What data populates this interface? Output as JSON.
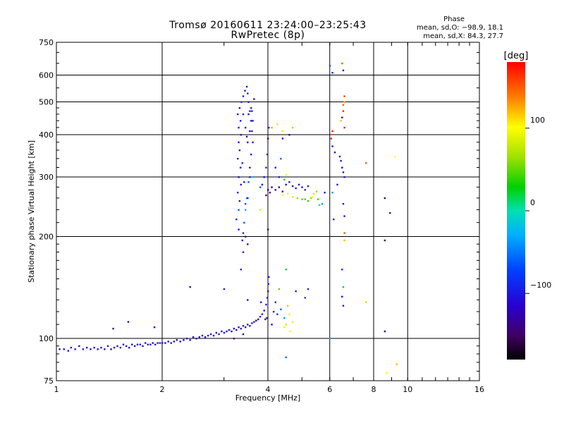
{
  "header": {
    "title_line1": "Tromsø 20160611 23:24:00–23:25:43",
    "title_line2": "RwPretec (8p)",
    "phase_label": "Phase",
    "stat_o": "mean, sd,O: −98.9, 18.1",
    "stat_x": "mean, sd,X:  84.3, 27.7"
  },
  "chart_data": {
    "type": "scatter",
    "xlabel": "Frequency [MHz]",
    "ylabel": "Stationary phase Virtual Height [km]",
    "x_scale": "log2",
    "y_scale": "log",
    "xlim": [
      1,
      16
    ],
    "ylim": [
      75,
      750
    ],
    "x_ticks": [
      1,
      2,
      4,
      6,
      8,
      10,
      16
    ],
    "x_tick_labels": [
      "1",
      "2",
      "4",
      "6",
      "8",
      "10",
      "16"
    ],
    "y_ticks": [
      75,
      100,
      200,
      300,
      400,
      500,
      600,
      750
    ],
    "y_tick_labels": [
      "75",
      "100",
      "200",
      "300",
      "400",
      "500",
      "600",
      "750"
    ],
    "grid": true,
    "colorbar": {
      "label": "[deg]",
      "min": -180,
      "max": 180,
      "ticks": [
        100,
        0,
        -100
      ],
      "tick_labels": [
        "100",
        "0",
        "−100"
      ]
    },
    "points": [
      [
        1.02,
        93,
        -100
      ],
      [
        1.05,
        93,
        -110
      ],
      [
        1.08,
        92,
        -100
      ],
      [
        1.1,
        94,
        -105
      ],
      [
        1.13,
        93,
        -100
      ],
      [
        1.16,
        95,
        -110
      ],
      [
        1.19,
        93,
        -100
      ],
      [
        1.22,
        94,
        -110
      ],
      [
        1.25,
        93,
        -100
      ],
      [
        1.28,
        94,
        -105
      ],
      [
        1.31,
        93,
        -100
      ],
      [
        1.34,
        94,
        -110
      ],
      [
        1.37,
        93,
        -100
      ],
      [
        1.4,
        95,
        -105
      ],
      [
        1.43,
        93,
        -110
      ],
      [
        1.46,
        94,
        -100
      ],
      [
        1.49,
        95,
        -110
      ],
      [
        1.52,
        94,
        -100
      ],
      [
        1.55,
        96,
        -105
      ],
      [
        1.58,
        95,
        -100
      ],
      [
        1.61,
        94,
        -110
      ],
      [
        1.64,
        96,
        -100
      ],
      [
        1.67,
        95,
        -105
      ],
      [
        1.7,
        96,
        -110
      ],
      [
        1.73,
        96,
        -100
      ],
      [
        1.76,
        95,
        -100
      ],
      [
        1.79,
        97,
        -105
      ],
      [
        1.82,
        96,
        -110
      ],
      [
        1.85,
        96,
        -100
      ],
      [
        1.88,
        97,
        -105
      ],
      [
        1.91,
        96,
        -110
      ],
      [
        1.94,
        97,
        -100
      ],
      [
        1.97,
        97,
        -105
      ],
      [
        2.0,
        97,
        -100
      ],
      [
        2.04,
        97,
        -110
      ],
      [
        2.08,
        98,
        -105
      ],
      [
        2.12,
        97,
        -100
      ],
      [
        2.16,
        98,
        -110
      ],
      [
        2.2,
        99,
        -100
      ],
      [
        2.25,
        98,
        -105
      ],
      [
        2.3,
        99,
        -110
      ],
      [
        2.35,
        100,
        -100
      ],
      [
        2.4,
        99,
        -105
      ],
      [
        2.45,
        101,
        -110
      ],
      [
        2.5,
        100,
        -100
      ],
      [
        2.55,
        101,
        -105
      ],
      [
        2.6,
        102,
        -110
      ],
      [
        2.65,
        101,
        -100
      ],
      [
        2.7,
        102,
        -105
      ],
      [
        2.75,
        103,
        -100
      ],
      [
        2.8,
        102,
        -110
      ],
      [
        2.85,
        104,
        -105
      ],
      [
        2.9,
        103,
        -100
      ],
      [
        2.95,
        105,
        -110
      ],
      [
        3.0,
        104,
        -105
      ],
      [
        3.05,
        105,
        -100
      ],
      [
        3.1,
        106,
        -110
      ],
      [
        3.15,
        105,
        -105
      ],
      [
        3.2,
        107,
        -100
      ],
      [
        3.25,
        106,
        -110
      ],
      [
        3.3,
        108,
        -105
      ],
      [
        3.35,
        107,
        -100
      ],
      [
        3.4,
        109,
        -110
      ],
      [
        3.45,
        108,
        -105
      ],
      [
        3.5,
        110,
        -100
      ],
      [
        3.55,
        109,
        -110
      ],
      [
        3.6,
        111,
        -105
      ],
      [
        3.65,
        112,
        -100
      ],
      [
        3.7,
        113,
        -110
      ],
      [
        3.75,
        114,
        -105
      ],
      [
        3.8,
        116,
        -100
      ],
      [
        3.85,
        118,
        -110
      ],
      [
        3.9,
        121,
        -105
      ],
      [
        3.95,
        126,
        -100
      ],
      [
        3.98,
        132,
        -110
      ],
      [
        4.0,
        138,
        -105
      ],
      [
        4.01,
        145,
        -100
      ],
      [
        4.02,
        152,
        -110
      ],
      [
        3.97,
        115,
        -130
      ],
      [
        3.93,
        114,
        -140
      ],
      [
        3.4,
        103,
        -140
      ],
      [
        3.2,
        100,
        -145
      ],
      [
        1.45,
        107,
        -140
      ],
      [
        1.6,
        112,
        -120
      ],
      [
        1.9,
        108,
        -110
      ],
      [
        2.4,
        142,
        -110
      ],
      [
        3.0,
        140,
        -100
      ],
      [
        3.5,
        130,
        -120
      ],
      [
        3.82,
        128,
        -115
      ],
      [
        4.15,
        120,
        -100
      ],
      [
        4.25,
        118,
        -80
      ],
      [
        4.35,
        122,
        -60
      ],
      [
        4.45,
        115,
        -40
      ],
      [
        4.5,
        110,
        80
      ],
      [
        4.55,
        125,
        120
      ],
      [
        4.6,
        118,
        90
      ],
      [
        4.62,
        105,
        100
      ],
      [
        4.45,
        108,
        95
      ],
      [
        4.7,
        112,
        100
      ],
      [
        4.3,
        140,
        50
      ],
      [
        4.5,
        160,
        20
      ],
      [
        4.8,
        138,
        -100
      ],
      [
        5.1,
        132,
        -80
      ],
      [
        5.2,
        140,
        -100
      ],
      [
        6.0,
        100,
        -30
      ],
      [
        6.5,
        160,
        -80
      ],
      [
        6.5,
        133,
        -100
      ],
      [
        6.55,
        142,
        -30
      ],
      [
        6.55,
        125,
        -100
      ],
      [
        7.6,
        128,
        80
      ],
      [
        8.6,
        105,
        -150
      ],
      [
        8.7,
        79,
        100
      ],
      [
        9.3,
        84,
        120
      ],
      [
        4.5,
        88,
        -60
      ],
      [
        4.2,
        128,
        -100
      ],
      [
        4.1,
        110,
        -110
      ],
      [
        3.35,
        160,
        -90
      ],
      [
        3.4,
        180,
        -100
      ],
      [
        3.5,
        190,
        -130
      ],
      [
        3.3,
        210,
        -100
      ],
      [
        3.25,
        225,
        -90
      ],
      [
        3.3,
        240,
        -60
      ],
      [
        3.32,
        255,
        -100
      ],
      [
        3.28,
        270,
        -90
      ],
      [
        3.35,
        285,
        -100
      ],
      [
        3.3,
        300,
        -110
      ],
      [
        3.34,
        320,
        -100
      ],
      [
        3.28,
        340,
        -90
      ],
      [
        3.32,
        360,
        -100
      ],
      [
        3.3,
        380,
        -110
      ],
      [
        3.35,
        400,
        -100
      ],
      [
        3.3,
        420,
        -90
      ],
      [
        3.34,
        440,
        -100
      ],
      [
        3.28,
        460,
        -110
      ],
      [
        3.32,
        480,
        -100
      ],
      [
        3.36,
        500,
        -90
      ],
      [
        3.4,
        520,
        -100
      ],
      [
        3.44,
        540,
        -110
      ],
      [
        3.48,
        555,
        -100
      ],
      [
        3.5,
        530,
        -90
      ],
      [
        3.52,
        500,
        -100
      ],
      [
        3.55,
        470,
        -110
      ],
      [
        3.58,
        440,
        -100
      ],
      [
        3.6,
        410,
        -90
      ],
      [
        3.62,
        380,
        -100
      ],
      [
        3.58,
        350,
        -110
      ],
      [
        3.55,
        320,
        -100
      ],
      [
        3.52,
        290,
        -60
      ],
      [
        3.48,
        260,
        -40
      ],
      [
        3.45,
        240,
        -30
      ],
      [
        3.42,
        220,
        -60
      ],
      [
        3.4,
        205,
        -90
      ],
      [
        3.38,
        195,
        -100
      ],
      [
        3.45,
        200,
        -120
      ],
      [
        3.5,
        260,
        -100
      ],
      [
        3.55,
        300,
        -90
      ],
      [
        3.4,
        460,
        -100
      ],
      [
        3.45,
        420,
        -110
      ],
      [
        3.5,
        380,
        -100
      ],
      [
        3.38,
        330,
        -90
      ],
      [
        3.42,
        290,
        -110
      ],
      [
        3.6,
        470,
        -100
      ],
      [
        3.62,
        440,
        -100
      ],
      [
        3.65,
        510,
        -110
      ],
      [
        3.55,
        410,
        -130
      ],
      [
        3.48,
        395,
        -140
      ],
      [
        3.52,
        460,
        -120
      ],
      [
        3.58,
        480,
        -100
      ],
      [
        3.45,
        250,
        -70
      ],
      [
        3.6,
        300,
        -20
      ],
      [
        3.85,
        285,
        -110
      ],
      [
        3.9,
        300,
        -100
      ],
      [
        3.95,
        320,
        -90
      ],
      [
        3.98,
        350,
        -100
      ],
      [
        4.0,
        390,
        -110
      ],
      [
        4.02,
        420,
        -100
      ],
      [
        3.95,
        265,
        -140
      ],
      [
        4.0,
        275,
        -130
      ],
      [
        4.05,
        270,
        -140
      ],
      [
        4.1,
        280,
        -135
      ],
      [
        4.2,
        275,
        -130
      ],
      [
        4.3,
        280,
        -140
      ],
      [
        4.4,
        272,
        -135
      ],
      [
        4.5,
        285,
        -130
      ],
      [
        4.6,
        290,
        -100
      ],
      [
        4.7,
        282,
        -120
      ],
      [
        4.8,
        278,
        -100
      ],
      [
        4.9,
        285,
        -110
      ],
      [
        5.0,
        280,
        -100
      ],
      [
        5.1,
        275,
        -90
      ],
      [
        5.2,
        282,
        -100
      ],
      [
        4.4,
        265,
        100
      ],
      [
        4.55,
        268,
        90
      ],
      [
        4.7,
        262,
        110
      ],
      [
        4.85,
        260,
        60
      ],
      [
        5.0,
        258,
        50
      ],
      [
        5.1,
        258,
        45
      ],
      [
        5.2,
        255,
        40
      ],
      [
        5.3,
        260,
        60
      ],
      [
        5.35,
        262,
        100
      ],
      [
        5.4,
        268,
        80
      ],
      [
        5.5,
        272,
        60
      ],
      [
        5.55,
        258,
        40
      ],
      [
        5.6,
        248,
        0
      ],
      [
        5.7,
        250,
        -30
      ],
      [
        5.8,
        270,
        -100
      ],
      [
        4.2,
        320,
        -100
      ],
      [
        4.3,
        300,
        -90
      ],
      [
        4.35,
        340,
        -60
      ],
      [
        4.45,
        295,
        40
      ],
      [
        4.5,
        305,
        100
      ],
      [
        4.25,
        430,
        110
      ],
      [
        4.1,
        420,
        130
      ],
      [
        4.4,
        410,
        90
      ],
      [
        4.6,
        400,
        -120
      ],
      [
        4.7,
        420,
        120
      ],
      [
        4.4,
        390,
        -100
      ],
      [
        3.8,
        240,
        110
      ],
      [
        3.8,
        280,
        -60
      ],
      [
        4.0,
        210,
        -130
      ],
      [
        6.0,
        640,
        -60
      ],
      [
        6.1,
        610,
        -100
      ],
      [
        6.5,
        650,
        150
      ],
      [
        6.55,
        620,
        -100
      ],
      [
        6.6,
        520,
        160
      ],
      [
        6.6,
        500,
        130
      ],
      [
        6.55,
        490,
        150
      ],
      [
        6.55,
        470,
        170
      ],
      [
        6.5,
        450,
        -100
      ],
      [
        6.45,
        440,
        120
      ],
      [
        6.6,
        420,
        170
      ],
      [
        6.1,
        410,
        170
      ],
      [
        6.05,
        390,
        170
      ],
      [
        6.1,
        370,
        -100
      ],
      [
        6.2,
        355,
        -120
      ],
      [
        6.4,
        345,
        -100
      ],
      [
        6.45,
        335,
        -100
      ],
      [
        6.5,
        320,
        -100
      ],
      [
        6.55,
        310,
        -100
      ],
      [
        6.6,
        300,
        -100
      ],
      [
        6.55,
        250,
        -100
      ],
      [
        6.6,
        230,
        -100
      ],
      [
        6.6,
        205,
        150
      ],
      [
        6.6,
        195,
        120
      ],
      [
        7.6,
        330,
        150
      ],
      [
        9.2,
        345,
        100
      ],
      [
        8.6,
        260,
        -150
      ],
      [
        8.9,
        235,
        -150
      ],
      [
        8.6,
        195,
        -150
      ],
      [
        6.3,
        285,
        -100
      ],
      [
        6.1,
        270,
        -40
      ],
      [
        6.15,
        225,
        -100
      ]
    ]
  }
}
